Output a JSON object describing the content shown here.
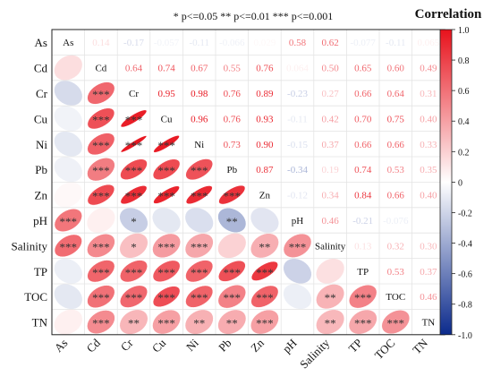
{
  "chart_data": {
    "type": "heatmap",
    "title": "Correlation",
    "significance_note": "* p<=0.05  ** p<=0.01  *** p<=0.001",
    "variables": [
      "As",
      "Cd",
      "Cr",
      "Cu",
      "Ni",
      "Pb",
      "Zn",
      "pH",
      "Salinity",
      "TP",
      "TOC",
      "TN"
    ],
    "upper_triangle_display": "numbers",
    "lower_triangle_display": "ellipses",
    "color_scale": {
      "min": -1.0,
      "max": 1.0,
      "min_color": "#0b2a8c",
      "mid_color": "#ffffff",
      "max_color": "#e8121c",
      "ticks": [
        -1.0,
        -0.8,
        -0.6,
        -0.4,
        -0.2,
        0,
        0.2,
        0.4,
        0.6,
        0.8,
        1.0
      ],
      "tick_labels": [
        "-1.0",
        "-0.8",
        "-0.6",
        "-0.4",
        "-0.2",
        "0",
        "0.2",
        "0.4",
        "0.6",
        "0.8",
        "1.0"
      ]
    },
    "matrix": [
      [
        1,
        0.14,
        -0.17,
        -0.057,
        -0.11,
        -0.066,
        0.029,
        0.58,
        0.62,
        -0.077,
        -0.11,
        0.065
      ],
      [
        0.14,
        1,
        0.64,
        0.74,
        0.67,
        0.55,
        0.76,
        0.064,
        0.5,
        0.65,
        0.6,
        0.49
      ],
      [
        -0.17,
        0.64,
        1,
        0.95,
        0.98,
        0.76,
        0.89,
        -0.23,
        0.27,
        0.66,
        0.64,
        0.31
      ],
      [
        -0.057,
        0.74,
        0.95,
        1,
        0.96,
        0.76,
        0.93,
        -0.11,
        0.42,
        0.7,
        0.75,
        0.4
      ],
      [
        -0.11,
        0.67,
        0.98,
        0.96,
        1,
        0.73,
        0.9,
        -0.15,
        0.37,
        0.66,
        0.66,
        0.33
      ],
      [
        -0.066,
        0.55,
        0.76,
        0.76,
        0.73,
        1,
        0.87,
        -0.34,
        0.19,
        0.74,
        0.53,
        0.35
      ],
      [
        0.029,
        0.76,
        0.89,
        0.93,
        0.9,
        0.87,
        1,
        -0.12,
        0.34,
        0.84,
        0.66,
        0.4
      ],
      [
        0.58,
        0.064,
        -0.23,
        -0.11,
        -0.15,
        -0.34,
        -0.12,
        1,
        0.46,
        -0.21,
        -0.076,
        0.0
      ],
      [
        0.62,
        0.5,
        0.27,
        0.42,
        0.37,
        0.19,
        0.34,
        0.46,
        1,
        0.13,
        0.32,
        0.3
      ],
      [
        -0.077,
        0.65,
        0.66,
        0.7,
        0.66,
        0.74,
        0.84,
        -0.21,
        0.13,
        1,
        0.53,
        0.37
      ],
      [
        -0.11,
        0.6,
        0.64,
        0.75,
        0.66,
        0.53,
        0.66,
        -0.076,
        0.32,
        0.53,
        1,
        0.46
      ],
      [
        0.065,
        0.49,
        0.31,
        0.4,
        0.33,
        0.35,
        0.4,
        0.0,
        0.3,
        0.37,
        0.46,
        1
      ]
    ],
    "value_labels": [
      [
        "",
        "0.14",
        "-0.17",
        "-0.057",
        "-0.11",
        "-0.066",
        "0.029",
        "0.58",
        "0.62",
        "-0.077",
        "-0.11",
        "0.065"
      ],
      [
        "",
        "",
        "0.64",
        "0.74",
        "0.67",
        "0.55",
        "0.76",
        "0.064",
        "0.50",
        "0.65",
        "0.60",
        "0.49"
      ],
      [
        "",
        "",
        "",
        "0.95",
        "0.98",
        "0.76",
        "0.89",
        "-0.23",
        "0.27",
        "0.66",
        "0.64",
        "0.31"
      ],
      [
        "",
        "",
        "",
        "",
        "0.96",
        "0.76",
        "0.93",
        "-0.11",
        "0.42",
        "0.70",
        "0.75",
        "0.40"
      ],
      [
        "",
        "",
        "",
        "",
        "",
        "0.73",
        "0.90",
        "-0.15",
        "0.37",
        "0.66",
        "0.66",
        "0.33"
      ],
      [
        "",
        "",
        "",
        "",
        "",
        "",
        "0.87",
        "-0.34",
        "0.19",
        "0.74",
        "0.53",
        "0.35"
      ],
      [
        "",
        "",
        "",
        "",
        "",
        "",
        "",
        "-0.12",
        "0.34",
        "0.84",
        "0.66",
        "0.40"
      ],
      [
        "",
        "",
        "",
        "",
        "",
        "",
        "",
        "",
        "0.46",
        "-0.21",
        "-0.076",
        ""
      ],
      [
        "",
        "",
        "",
        "",
        "",
        "",
        "",
        "",
        "",
        "0.13",
        "0.32",
        "0.30"
      ],
      [
        "",
        "",
        "",
        "",
        "",
        "",
        "",
        "",
        "",
        "",
        "0.53",
        "0.37"
      ],
      [
        "",
        "",
        "",
        "",
        "",
        "",
        "",
        "",
        "",
        "",
        "",
        "0.46"
      ],
      [
        "",
        "",
        "",
        "",
        "",
        "",
        "",
        "",
        "",
        "",
        "",
        ""
      ]
    ],
    "significance_lower": [
      [
        "",
        "",
        "",
        "",
        "",
        "",
        "",
        "",
        "",
        "",
        "",
        ""
      ],
      [
        "",
        "",
        "",
        "",
        "",
        "",
        "",
        "",
        "",
        "",
        "",
        ""
      ],
      [
        "",
        "***",
        "",
        "",
        "",
        "",
        "",
        "",
        "",
        "",
        "",
        ""
      ],
      [
        "",
        "***",
        "***",
        "",
        "",
        "",
        "",
        "",
        "",
        "",
        "",
        ""
      ],
      [
        "",
        "***",
        "***",
        "***",
        "",
        "",
        "",
        "",
        "",
        "",
        "",
        ""
      ],
      [
        "",
        "***",
        "***",
        "***",
        "***",
        "",
        "",
        "",
        "",
        "",
        "",
        ""
      ],
      [
        "",
        "***",
        "***",
        "***",
        "***",
        "***",
        "",
        "",
        "",
        "",
        "",
        ""
      ],
      [
        "***",
        "",
        "*",
        "",
        "",
        "**",
        "",
        "",
        "",
        "",
        "",
        ""
      ],
      [
        "***",
        "***",
        "*",
        "***",
        "***",
        "",
        "**",
        "***",
        "",
        "",
        "",
        ""
      ],
      [
        "",
        "***",
        "***",
        "***",
        "***",
        "***",
        "***",
        "",
        "",
        "",
        "",
        ""
      ],
      [
        "",
        "***",
        "***",
        "***",
        "***",
        "***",
        "***",
        "",
        "**",
        "***",
        "",
        ""
      ],
      [
        "",
        "***",
        "**",
        "***",
        "**",
        "**",
        "***",
        "",
        "**",
        "***",
        "***",
        ""
      ]
    ]
  }
}
